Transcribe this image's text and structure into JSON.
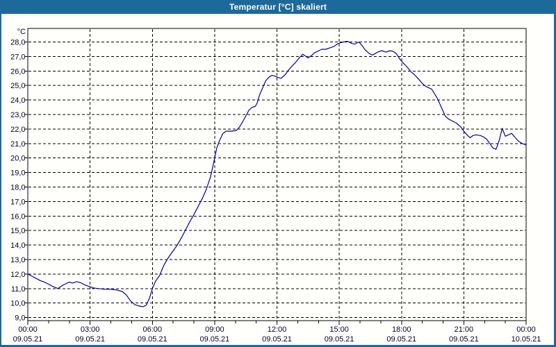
{
  "window": {
    "title": "Temperatur [°C] skaliert"
  },
  "colors": {
    "frame": "#1e699c",
    "title_text": "#ffffff",
    "client_background": "#fffffb",
    "line": "#0000a0",
    "grid": "#000000",
    "labels": "#000033"
  },
  "chart_data": {
    "type": "line",
    "title": "Temperatur [°C] skaliert",
    "ylabel_unit": "°C",
    "ylim": [
      9.0,
      28.0
    ],
    "xlim_hours": [
      0,
      24
    ],
    "grid": true,
    "grid_style": "dashed",
    "legend": "none",
    "x_minor_tick_hours": 1,
    "x_major_tick_hours": 3,
    "x_ticks": [
      {
        "hours": 0,
        "time": "00:00",
        "date": "09.05.21"
      },
      {
        "hours": 3,
        "time": "03:00",
        "date": "09.05.21"
      },
      {
        "hours": 6,
        "time": "06:00",
        "date": "09.05.21"
      },
      {
        "hours": 9,
        "time": "09:00",
        "date": "09.05.21"
      },
      {
        "hours": 12,
        "time": "12:00",
        "date": "09.05.21"
      },
      {
        "hours": 15,
        "time": "15:00",
        "date": "09.05.21"
      },
      {
        "hours": 18,
        "time": "18:00",
        "date": "09.05.21"
      },
      {
        "hours": 21,
        "time": "21:00",
        "date": "09.05.21"
      },
      {
        "hours": 24,
        "time": "00:00",
        "date": "10.05.21"
      }
    ],
    "y_ticks": [
      {
        "value": 28,
        "label": "28,0"
      },
      {
        "value": 27,
        "label": "27,0"
      },
      {
        "value": 26,
        "label": "26,0"
      },
      {
        "value": 25,
        "label": "25,0"
      },
      {
        "value": 24,
        "label": "24,0"
      },
      {
        "value": 23,
        "label": "23,0"
      },
      {
        "value": 22,
        "label": "22,0"
      },
      {
        "value": 21,
        "label": "21,0"
      },
      {
        "value": 20,
        "label": "20,0"
      },
      {
        "value": 19,
        "label": "19,0"
      },
      {
        "value": 18,
        "label": "18,0"
      },
      {
        "value": 17,
        "label": "17,0"
      },
      {
        "value": 16,
        "label": "16,0"
      },
      {
        "value": 15,
        "label": "15,0"
      },
      {
        "value": 14,
        "label": "14,0"
      },
      {
        "value": 13,
        "label": "13,0"
      },
      {
        "value": 12,
        "label": "12,0"
      },
      {
        "value": 11,
        "label": "11,0"
      },
      {
        "value": 10,
        "label": "10,0"
      },
      {
        "value": 9,
        "label": "9,0"
      }
    ],
    "series": [
      {
        "name": "Temperatur",
        "color": "#0000a0",
        "points": [
          [
            0,
            12.0
          ],
          [
            0.2,
            11.85
          ],
          [
            0.4,
            11.7
          ],
          [
            0.6,
            11.55
          ],
          [
            0.8,
            11.45
          ],
          [
            1.0,
            11.3
          ],
          [
            1.2,
            11.15
          ],
          [
            1.45,
            11.0
          ],
          [
            1.65,
            11.2
          ],
          [
            1.85,
            11.35
          ],
          [
            2.0,
            11.45
          ],
          [
            2.15,
            11.38
          ],
          [
            2.35,
            11.48
          ],
          [
            2.55,
            11.4
          ],
          [
            2.75,
            11.25
          ],
          [
            2.95,
            11.15
          ],
          [
            3.15,
            11.05
          ],
          [
            3.4,
            11.0
          ],
          [
            3.7,
            10.95
          ],
          [
            4.0,
            10.95
          ],
          [
            4.3,
            10.9
          ],
          [
            4.55,
            10.8
          ],
          [
            4.75,
            10.55
          ],
          [
            4.95,
            10.15
          ],
          [
            5.15,
            9.9
          ],
          [
            5.35,
            9.8
          ],
          [
            5.55,
            9.75
          ],
          [
            5.7,
            9.85
          ],
          [
            5.85,
            10.3
          ],
          [
            6.0,
            11.0
          ],
          [
            6.15,
            11.5
          ],
          [
            6.35,
            11.9
          ],
          [
            6.55,
            12.6
          ],
          [
            6.75,
            13.1
          ],
          [
            7.0,
            13.6
          ],
          [
            7.2,
            14.0
          ],
          [
            7.4,
            14.5
          ],
          [
            7.6,
            15.05
          ],
          [
            7.8,
            15.6
          ],
          [
            8.0,
            16.1
          ],
          [
            8.2,
            16.65
          ],
          [
            8.4,
            17.2
          ],
          [
            8.6,
            17.85
          ],
          [
            8.8,
            18.7
          ],
          [
            9.0,
            20.0
          ],
          [
            9.1,
            20.7
          ],
          [
            9.25,
            21.25
          ],
          [
            9.4,
            21.7
          ],
          [
            9.55,
            21.85
          ],
          [
            9.8,
            21.85
          ],
          [
            10.05,
            21.9
          ],
          [
            10.2,
            22.15
          ],
          [
            10.35,
            22.5
          ],
          [
            10.5,
            22.9
          ],
          [
            10.65,
            23.3
          ],
          [
            10.8,
            23.5
          ],
          [
            10.95,
            23.55
          ],
          [
            11.05,
            23.8
          ],
          [
            11.15,
            24.3
          ],
          [
            11.3,
            24.8
          ],
          [
            11.45,
            25.3
          ],
          [
            11.6,
            25.55
          ],
          [
            11.75,
            25.7
          ],
          [
            11.9,
            25.65
          ],
          [
            12.05,
            25.55
          ],
          [
            12.2,
            25.5
          ],
          [
            12.4,
            25.75
          ],
          [
            12.55,
            26.05
          ],
          [
            12.7,
            26.3
          ],
          [
            12.9,
            26.6
          ],
          [
            13.1,
            26.95
          ],
          [
            13.25,
            27.15
          ],
          [
            13.4,
            27.0
          ],
          [
            13.5,
            26.9
          ],
          [
            13.65,
            27.05
          ],
          [
            13.8,
            27.25
          ],
          [
            13.95,
            27.35
          ],
          [
            14.15,
            27.5
          ],
          [
            14.35,
            27.5
          ],
          [
            14.55,
            27.6
          ],
          [
            14.75,
            27.7
          ],
          [
            14.9,
            27.85
          ],
          [
            15.05,
            27.95
          ],
          [
            15.2,
            28.0
          ],
          [
            15.4,
            28.05
          ],
          [
            15.6,
            27.9
          ],
          [
            15.75,
            27.85
          ],
          [
            15.95,
            28.0
          ],
          [
            16.1,
            27.75
          ],
          [
            16.25,
            27.45
          ],
          [
            16.45,
            27.2
          ],
          [
            16.6,
            27.1
          ],
          [
            16.85,
            27.3
          ],
          [
            17.05,
            27.4
          ],
          [
            17.25,
            27.3
          ],
          [
            17.45,
            27.4
          ],
          [
            17.6,
            27.35
          ],
          [
            17.75,
            27.2
          ],
          [
            17.9,
            26.85
          ],
          [
            18.05,
            26.6
          ],
          [
            18.25,
            26.3
          ],
          [
            18.45,
            25.95
          ],
          [
            18.65,
            25.7
          ],
          [
            18.85,
            25.4
          ],
          [
            19.0,
            25.15
          ],
          [
            19.15,
            24.95
          ],
          [
            19.3,
            24.85
          ],
          [
            19.45,
            24.75
          ],
          [
            19.6,
            24.4
          ],
          [
            19.75,
            24.05
          ],
          [
            19.9,
            23.55
          ],
          [
            20.1,
            22.9
          ],
          [
            20.25,
            22.7
          ],
          [
            20.45,
            22.55
          ],
          [
            20.65,
            22.4
          ],
          [
            20.85,
            22.15
          ],
          [
            21.0,
            21.85
          ],
          [
            21.15,
            21.6
          ],
          [
            21.3,
            21.4
          ],
          [
            21.45,
            21.55
          ],
          [
            21.6,
            21.6
          ],
          [
            21.8,
            21.55
          ],
          [
            21.95,
            21.45
          ],
          [
            22.1,
            21.3
          ],
          [
            22.25,
            21.0
          ],
          [
            22.4,
            20.7
          ],
          [
            22.55,
            20.6
          ],
          [
            22.7,
            21.2
          ],
          [
            22.85,
            22.05
          ],
          [
            23.0,
            21.5
          ],
          [
            23.15,
            21.6
          ],
          [
            23.3,
            21.7
          ],
          [
            23.45,
            21.45
          ],
          [
            23.6,
            21.2
          ],
          [
            23.75,
            21.05
          ],
          [
            23.9,
            20.95
          ],
          [
            24.0,
            20.9
          ]
        ]
      }
    ]
  }
}
